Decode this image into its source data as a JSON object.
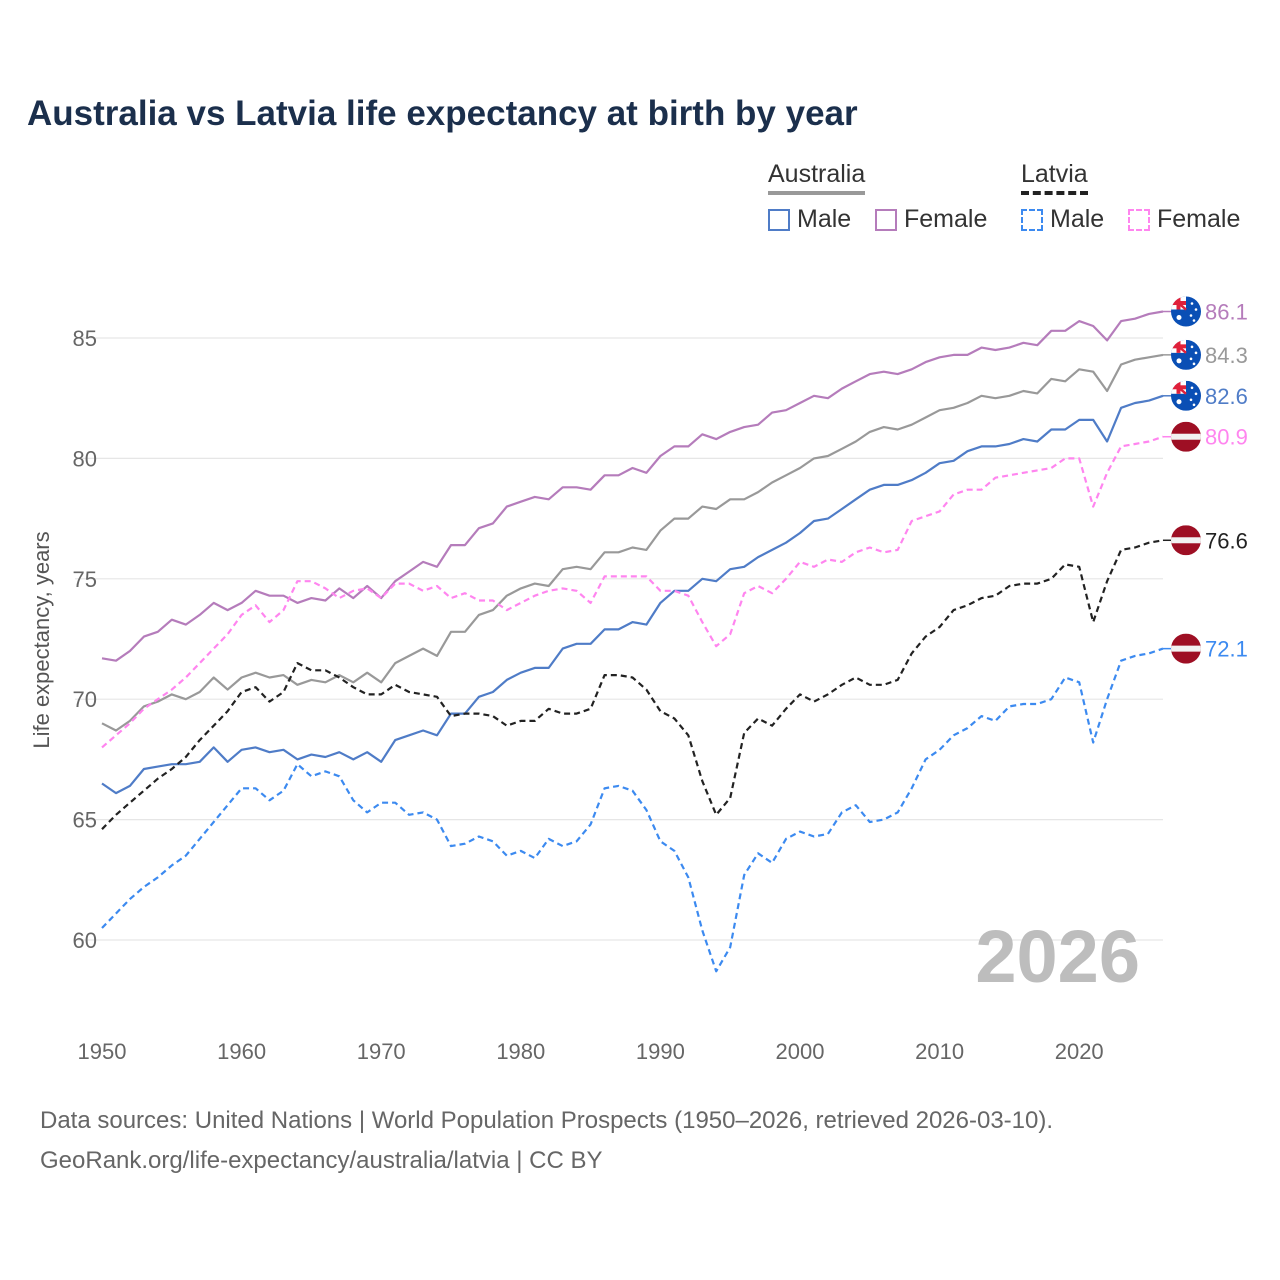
{
  "chart_data": {
    "type": "line",
    "title": "Australia vs Latvia life expectancy at birth by year",
    "xlabel": "",
    "ylabel": "Life expectancy, years",
    "xlim": [
      1950,
      2026
    ],
    "ylim": [
      57,
      88
    ],
    "x_ticks": [
      1950,
      1960,
      1970,
      1980,
      1990,
      2000,
      2010,
      2020
    ],
    "y_ticks": [
      60,
      65,
      70,
      75,
      80,
      85
    ],
    "grid": true,
    "watermark_year": "2026",
    "legend": {
      "placement": "top-right",
      "groups": [
        {
          "name": "Australia",
          "items": [
            "Male",
            "Female"
          ]
        },
        {
          "name": "Latvia",
          "items": [
            "Male",
            "Female"
          ]
        }
      ]
    },
    "x_start": 1950,
    "series": [
      {
        "key": "au_female",
        "country": "Australia",
        "name": "Female",
        "color": "#b57cbb",
        "dashed": false,
        "flag": "australia",
        "end_label": "86.1",
        "values": [
          71.7,
          71.6,
          72.0,
          72.6,
          72.8,
          73.3,
          73.1,
          73.5,
          74.0,
          73.7,
          74.0,
          74.5,
          74.3,
          74.3,
          74.0,
          74.2,
          74.1,
          74.6,
          74.2,
          74.7,
          74.2,
          74.9,
          75.3,
          75.7,
          75.5,
          76.4,
          76.4,
          77.1,
          77.3,
          78.0,
          78.2,
          78.4,
          78.3,
          78.8,
          78.8,
          78.7,
          79.3,
          79.3,
          79.6,
          79.4,
          80.1,
          80.5,
          80.5,
          81.0,
          80.8,
          81.1,
          81.3,
          81.4,
          81.9,
          82.0,
          82.3,
          82.6,
          82.5,
          82.9,
          83.2,
          83.5,
          83.6,
          83.5,
          83.7,
          84.0,
          84.2,
          84.3,
          84.3,
          84.6,
          84.5,
          84.6,
          84.8,
          84.7,
          85.3,
          85.3,
          85.7,
          85.5,
          84.9,
          85.7,
          85.8,
          86.0,
          86.1
        ]
      },
      {
        "key": "au_total",
        "country": "Australia",
        "name": "Total",
        "color": "#999999",
        "dashed": false,
        "flag": "australia",
        "end_label": "84.3",
        "values": [
          69.0,
          68.7,
          69.1,
          69.7,
          69.9,
          70.2,
          70.0,
          70.3,
          70.9,
          70.4,
          70.9,
          71.1,
          70.9,
          71.0,
          70.6,
          70.8,
          70.7,
          71.0,
          70.7,
          71.1,
          70.7,
          71.5,
          71.8,
          72.1,
          71.8,
          72.8,
          72.8,
          73.5,
          73.7,
          74.3,
          74.6,
          74.8,
          74.7,
          75.4,
          75.5,
          75.4,
          76.1,
          76.1,
          76.3,
          76.2,
          77.0,
          77.5,
          77.5,
          78.0,
          77.9,
          78.3,
          78.3,
          78.6,
          79.0,
          79.3,
          79.6,
          80.0,
          80.1,
          80.4,
          80.7,
          81.1,
          81.3,
          81.2,
          81.4,
          81.7,
          82.0,
          82.1,
          82.3,
          82.6,
          82.5,
          82.6,
          82.8,
          82.7,
          83.3,
          83.2,
          83.7,
          83.6,
          82.8,
          83.9,
          84.1,
          84.2,
          84.3
        ]
      },
      {
        "key": "au_male",
        "country": "Australia",
        "name": "Male",
        "color": "#4f7cc7",
        "dashed": false,
        "flag": "australia",
        "end_label": "82.6",
        "values": [
          66.5,
          66.1,
          66.4,
          67.1,
          67.2,
          67.3,
          67.3,
          67.4,
          68.0,
          67.4,
          67.9,
          68.0,
          67.8,
          67.9,
          67.5,
          67.7,
          67.6,
          67.8,
          67.5,
          67.8,
          67.4,
          68.3,
          68.5,
          68.7,
          68.5,
          69.4,
          69.4,
          70.1,
          70.3,
          70.8,
          71.1,
          71.3,
          71.3,
          72.1,
          72.3,
          72.3,
          72.9,
          72.9,
          73.2,
          73.1,
          74.0,
          74.5,
          74.5,
          75.0,
          74.9,
          75.4,
          75.5,
          75.9,
          76.2,
          76.5,
          76.9,
          77.4,
          77.5,
          77.9,
          78.3,
          78.7,
          78.9,
          78.9,
          79.1,
          79.4,
          79.8,
          79.9,
          80.3,
          80.5,
          80.5,
          80.6,
          80.8,
          80.7,
          81.2,
          81.2,
          81.6,
          81.6,
          80.7,
          82.1,
          82.3,
          82.4,
          82.6
        ]
      },
      {
        "key": "lv_female",
        "country": "Latvia",
        "name": "Female",
        "color": "#ff85ef",
        "dashed": true,
        "flag": "latvia",
        "end_label": "80.9",
        "values": [
          68.0,
          68.5,
          69.0,
          69.6,
          70.0,
          70.4,
          70.9,
          71.5,
          72.1,
          72.7,
          73.5,
          73.9,
          73.2,
          73.7,
          74.9,
          74.9,
          74.6,
          74.2,
          74.5,
          74.6,
          74.2,
          74.8,
          74.8,
          74.5,
          74.7,
          74.2,
          74.4,
          74.1,
          74.1,
          73.7,
          74.0,
          74.3,
          74.5,
          74.6,
          74.5,
          74.0,
          75.1,
          75.1,
          75.1,
          75.1,
          74.5,
          74.5,
          74.3,
          73.2,
          72.2,
          72.7,
          74.4,
          74.7,
          74.4,
          75.0,
          75.7,
          75.5,
          75.8,
          75.7,
          76.1,
          76.3,
          76.1,
          76.2,
          77.4,
          77.6,
          77.8,
          78.5,
          78.7,
          78.7,
          79.2,
          79.3,
          79.4,
          79.5,
          79.6,
          80.0,
          80.0,
          78.0,
          79.4,
          80.5,
          80.6,
          80.7,
          80.9
        ]
      },
      {
        "key": "lv_total",
        "country": "Latvia",
        "name": "Total",
        "color": "#222222",
        "dashed": true,
        "flag": "latvia",
        "end_label": "76.6",
        "values": [
          64.6,
          65.2,
          65.7,
          66.2,
          66.7,
          67.1,
          67.6,
          68.3,
          68.9,
          69.5,
          70.3,
          70.5,
          69.9,
          70.3,
          71.5,
          71.2,
          71.2,
          70.9,
          70.5,
          70.2,
          70.2,
          70.6,
          70.3,
          70.2,
          70.1,
          69.3,
          69.4,
          69.4,
          69.3,
          68.9,
          69.1,
          69.1,
          69.6,
          69.4,
          69.4,
          69.6,
          71.0,
          71.0,
          70.9,
          70.4,
          69.5,
          69.2,
          68.5,
          66.6,
          65.2,
          65.9,
          68.6,
          69.2,
          68.9,
          69.6,
          70.2,
          69.9,
          70.2,
          70.6,
          70.9,
          70.6,
          70.6,
          70.8,
          71.9,
          72.6,
          73.0,
          73.7,
          73.9,
          74.2,
          74.3,
          74.7,
          74.8,
          74.8,
          75.0,
          75.6,
          75.5,
          73.2,
          74.9,
          76.2,
          76.3,
          76.5,
          76.6
        ]
      },
      {
        "key": "lv_male",
        "country": "Latvia",
        "name": "Male",
        "color": "#3c8af0",
        "dashed": true,
        "flag": "latvia",
        "end_label": "72.1",
        "values": [
          60.5,
          61.1,
          61.7,
          62.2,
          62.6,
          63.1,
          63.5,
          64.2,
          64.9,
          65.6,
          66.3,
          66.3,
          65.8,
          66.2,
          67.3,
          66.8,
          67.0,
          66.8,
          65.8,
          65.3,
          65.7,
          65.7,
          65.2,
          65.3,
          65.0,
          63.9,
          64.0,
          64.3,
          64.1,
          63.5,
          63.7,
          63.4,
          64.2,
          63.9,
          64.1,
          64.8,
          66.3,
          66.4,
          66.2,
          65.4,
          64.1,
          63.7,
          62.6,
          60.4,
          58.7,
          59.7,
          62.7,
          63.6,
          63.2,
          64.2,
          64.5,
          64.3,
          64.4,
          65.3,
          65.6,
          64.9,
          65.0,
          65.3,
          66.3,
          67.5,
          67.9,
          68.5,
          68.8,
          69.3,
          69.1,
          69.7,
          69.8,
          69.8,
          70.0,
          70.9,
          70.7,
          68.2,
          70.0,
          71.6,
          71.8,
          71.9,
          72.1
        ]
      }
    ]
  },
  "legend_labels": {
    "australia": "Australia",
    "latvia": "Latvia",
    "male": "Male",
    "female": "Female"
  },
  "footer": {
    "line1": "Data sources: United Nations | World Population Prospects (1950–2026, retrieved 2026-03-10).",
    "line2": "GeoRank.org/life-expectancy/australia/latvia | CC BY"
  }
}
